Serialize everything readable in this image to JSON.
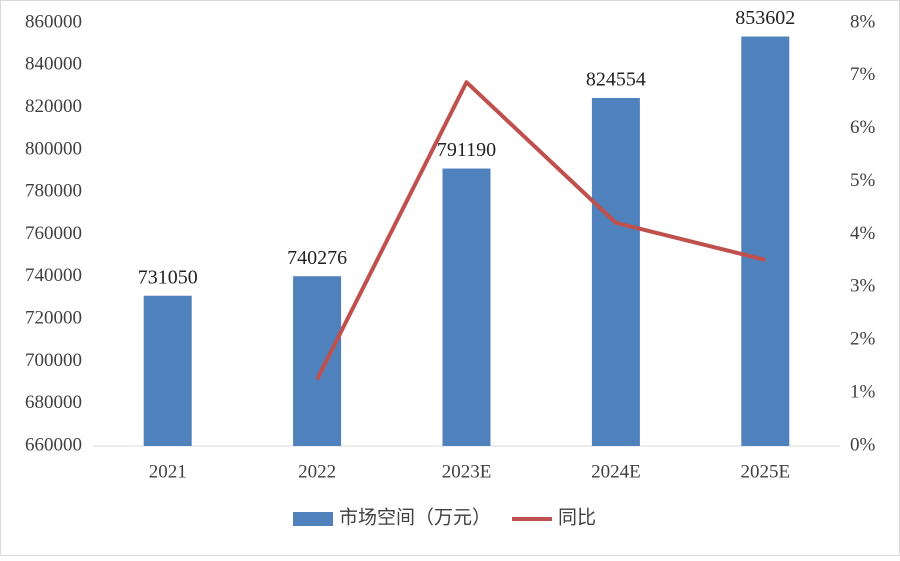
{
  "chart_data": {
    "type": "bar-line",
    "categories": [
      "2021",
      "2022",
      "2023E",
      "2024E",
      "2025E"
    ],
    "series": [
      {
        "name": "市场空间（万元）",
        "type": "bar",
        "color": "#4f81bd",
        "values": [
          731050,
          740276,
          791190,
          824554,
          853602
        ]
      },
      {
        "name": "同比",
        "type": "line",
        "axis": "y2",
        "color": "#c0504d",
        "values": [
          null,
          1.26,
          6.88,
          4.22,
          3.52
        ]
      }
    ],
    "ylim": [
      660000,
      860000
    ],
    "yticks": [
      660000,
      680000,
      700000,
      720000,
      740000,
      760000,
      780000,
      800000,
      820000,
      840000,
      860000
    ],
    "y2lim": [
      0,
      8
    ],
    "y2ticks": [
      {
        "value": 0,
        "label": "0%"
      },
      {
        "value": 1,
        "label": "1%"
      },
      {
        "value": 2,
        "label": "2%"
      },
      {
        "value": 3,
        "label": "3%"
      },
      {
        "value": 4,
        "label": "4%"
      },
      {
        "value": 5,
        "label": "5%"
      },
      {
        "value": 6,
        "label": "6%"
      },
      {
        "value": 7,
        "label": "7%"
      },
      {
        "value": 8,
        "label": "8%"
      }
    ],
    "legend": "bottom"
  }
}
